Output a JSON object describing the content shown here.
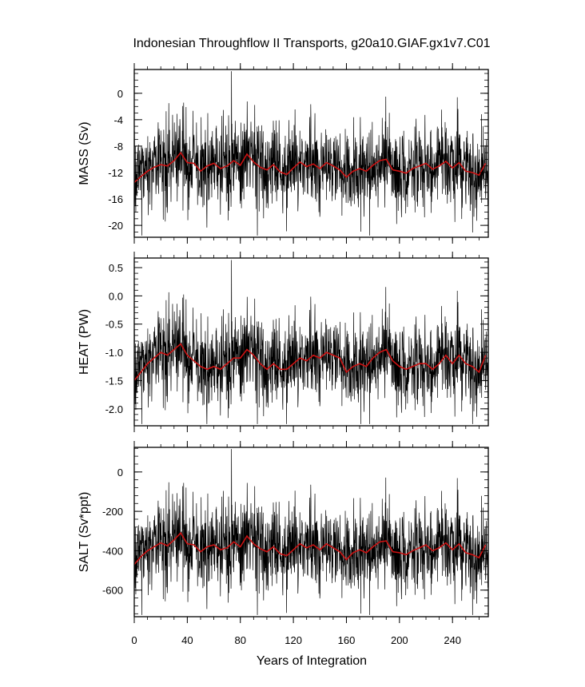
{
  "title": "Indonesian Throughflow II Transports, g20a10.GIAF.gx1v7.C01",
  "xlabel": "Years of Integration",
  "x_ticks": [
    "0",
    "40",
    "80",
    "120",
    "160",
    "200",
    "240"
  ],
  "colors": {
    "raw_series": "#000000",
    "smoothed_series": "#cc1111",
    "frame": "#000000"
  },
  "chart_data": [
    {
      "type": "line",
      "ylabel": "MASS (Sv)",
      "xlim": [
        0,
        267
      ],
      "ylim": [
        -21.8,
        3.6
      ],
      "y_ticks": [
        0,
        -4,
        -8,
        -12,
        -16,
        -20
      ],
      "y_tick_labels": [
        "0",
        "-4",
        "-8",
        "-12",
        "-16",
        "-20"
      ],
      "y_minor_step": 1,
      "x_minor_step": 10,
      "series": [
        {
          "style": "raw",
          "description_values": {
            "mean": -11.6,
            "min": -21.0,
            "max": 3.2
          }
        },
        {
          "style": "smoothed",
          "x": [
            0,
            5,
            10,
            15,
            20,
            25,
            30,
            35,
            40,
            45,
            50,
            55,
            60,
            65,
            70,
            75,
            80,
            85,
            90,
            95,
            100,
            105,
            110,
            115,
            120,
            125,
            130,
            135,
            140,
            145,
            150,
            155,
            160,
            165,
            170,
            175,
            180,
            185,
            190,
            195,
            200,
            205,
            210,
            215,
            220,
            225,
            230,
            235,
            240,
            245,
            250,
            255,
            260,
            265
          ],
          "values": [
            -13.5,
            -12.6,
            -11.8,
            -11.2,
            -10.8,
            -11.0,
            -10.2,
            -9.0,
            -10.5,
            -10.6,
            -11.8,
            -11.0,
            -10.6,
            -11.4,
            -11.0,
            -10.2,
            -10.9,
            -9.2,
            -10.4,
            -11.2,
            -11.6,
            -10.8,
            -11.9,
            -12.3,
            -11.3,
            -10.4,
            -11.1,
            -10.7,
            -11.4,
            -10.5,
            -11.0,
            -11.6,
            -12.7,
            -11.8,
            -11.4,
            -11.8,
            -10.9,
            -10.2,
            -10.0,
            -11.6,
            -11.8,
            -12.1,
            -11.4,
            -11.0,
            -10.6,
            -11.5,
            -11.0,
            -10.3,
            -11.3,
            -10.5,
            -11.8,
            -12.0,
            -12.4,
            -10.6
          ]
        }
      ]
    },
    {
      "type": "line",
      "ylabel": "HEAT (PW)",
      "xlim": [
        0,
        267
      ],
      "ylim": [
        -2.3,
        0.67
      ],
      "y_ticks": [
        0.5,
        0.0,
        -0.5,
        -1.0,
        -1.5,
        -2.0
      ],
      "y_tick_labels": [
        "0.5",
        "0.0",
        "-0.5",
        "-1.0",
        "-1.5",
        "-2.0"
      ],
      "y_minor_step": 0.1,
      "x_minor_step": 10,
      "series": [
        {
          "style": "raw",
          "description_values": {
            "mean": -1.1,
            "min": -2.25,
            "max": 0.6
          }
        },
        {
          "style": "smoothed",
          "x": [
            0,
            5,
            10,
            15,
            20,
            25,
            30,
            35,
            40,
            45,
            50,
            55,
            60,
            65,
            70,
            75,
            80,
            85,
            90,
            95,
            100,
            105,
            110,
            115,
            120,
            125,
            130,
            135,
            140,
            145,
            150,
            155,
            160,
            165,
            170,
            175,
            180,
            185,
            190,
            195,
            200,
            205,
            210,
            215,
            220,
            225,
            230,
            235,
            240,
            245,
            250,
            255,
            260,
            265
          ],
          "values": [
            -1.5,
            -1.35,
            -1.2,
            -1.1,
            -1.0,
            -1.05,
            -0.95,
            -0.85,
            -1.05,
            -1.15,
            -1.25,
            -1.3,
            -1.25,
            -1.3,
            -1.2,
            -1.1,
            -1.1,
            -0.95,
            -1.05,
            -1.2,
            -1.3,
            -1.2,
            -1.3,
            -1.3,
            -1.2,
            -1.1,
            -1.15,
            -1.05,
            -1.1,
            -1.0,
            -1.05,
            -1.1,
            -1.35,
            -1.25,
            -1.2,
            -1.25,
            -1.1,
            -1.0,
            -0.95,
            -1.15,
            -1.25,
            -1.3,
            -1.25,
            -1.2,
            -1.2,
            -1.3,
            -1.2,
            -1.05,
            -1.2,
            -1.05,
            -1.2,
            -1.25,
            -1.35,
            -1.05
          ]
        }
      ]
    },
    {
      "type": "line",
      "ylabel": "SALT (Sv*ppt)",
      "xlim": [
        0,
        267
      ],
      "ylim": [
        -735,
        125
      ],
      "y_ticks": [
        0,
        -200,
        -400,
        -600
      ],
      "y_tick_labels": [
        "0",
        "-200",
        "-400",
        "-600"
      ],
      "y_minor_step": 40,
      "x_minor_step": 10,
      "series": [
        {
          "style": "raw",
          "description_values": {
            "mean": -405,
            "min": -730,
            "max": 115
          }
        },
        {
          "style": "smoothed",
          "x": [
            0,
            5,
            10,
            15,
            20,
            25,
            30,
            35,
            40,
            45,
            50,
            55,
            60,
            65,
            70,
            75,
            80,
            85,
            90,
            95,
            100,
            105,
            110,
            115,
            120,
            125,
            130,
            135,
            140,
            145,
            150,
            155,
            160,
            165,
            170,
            175,
            180,
            185,
            190,
            195,
            200,
            205,
            210,
            215,
            220,
            225,
            230,
            235,
            240,
            245,
            250,
            255,
            260,
            265
          ],
          "values": [
            -470,
            -430,
            -400,
            -380,
            -360,
            -375,
            -345,
            -310,
            -365,
            -370,
            -405,
            -380,
            -370,
            -395,
            -385,
            -355,
            -380,
            -325,
            -365,
            -390,
            -405,
            -380,
            -415,
            -425,
            -395,
            -365,
            -385,
            -370,
            -395,
            -365,
            -385,
            -405,
            -445,
            -410,
            -395,
            -410,
            -380,
            -355,
            -350,
            -405,
            -410,
            -420,
            -400,
            -385,
            -370,
            -400,
            -385,
            -360,
            -395,
            -365,
            -410,
            -420,
            -435,
            -370
          ]
        }
      ]
    }
  ]
}
